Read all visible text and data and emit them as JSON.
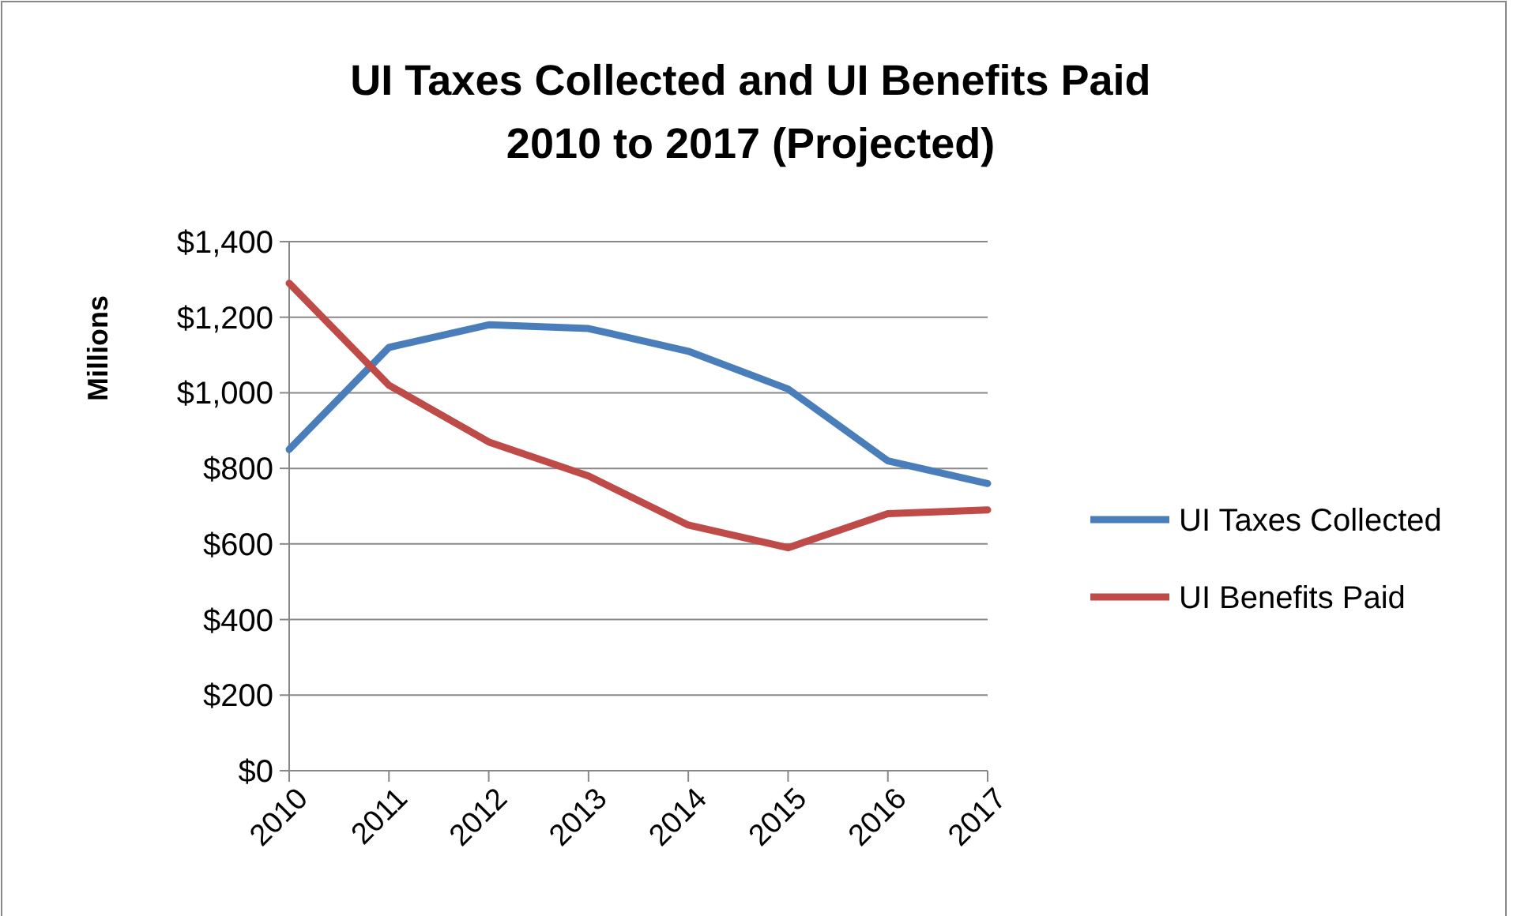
{
  "chart_data": {
    "type": "line",
    "title": "UI Taxes Collected and UI Benefits Paid\n2010 to 2017 (Projected)",
    "ylabel": "Millions",
    "categories": [
      "2010",
      "2011",
      "2012",
      "2013",
      "2014",
      "2015",
      "2016",
      "2017"
    ],
    "series": [
      {
        "name": "UI Taxes Collected",
        "color": "#4a7ebb",
        "values": [
          850,
          1120,
          1180,
          1170,
          1110,
          1010,
          820,
          760
        ]
      },
      {
        "name": "UI Benefits Paid",
        "color": "#be4b48",
        "values": [
          1290,
          1020,
          870,
          780,
          650,
          590,
          680,
          690
        ]
      }
    ],
    "ylim": [
      0,
      1400
    ],
    "yticks": [
      {
        "value": 0,
        "label": "$0"
      },
      {
        "value": 200,
        "label": "$200"
      },
      {
        "value": 400,
        "label": "$400"
      },
      {
        "value": 600,
        "label": "$600"
      },
      {
        "value": 800,
        "label": "$800"
      },
      {
        "value": 1000,
        "label": "$1,000"
      },
      {
        "value": 1200,
        "label": "$1,200"
      },
      {
        "value": 1400,
        "label": "$1,400"
      }
    ],
    "grid": "y",
    "legend": "right",
    "marker": "none",
    "line_style": "solid"
  }
}
